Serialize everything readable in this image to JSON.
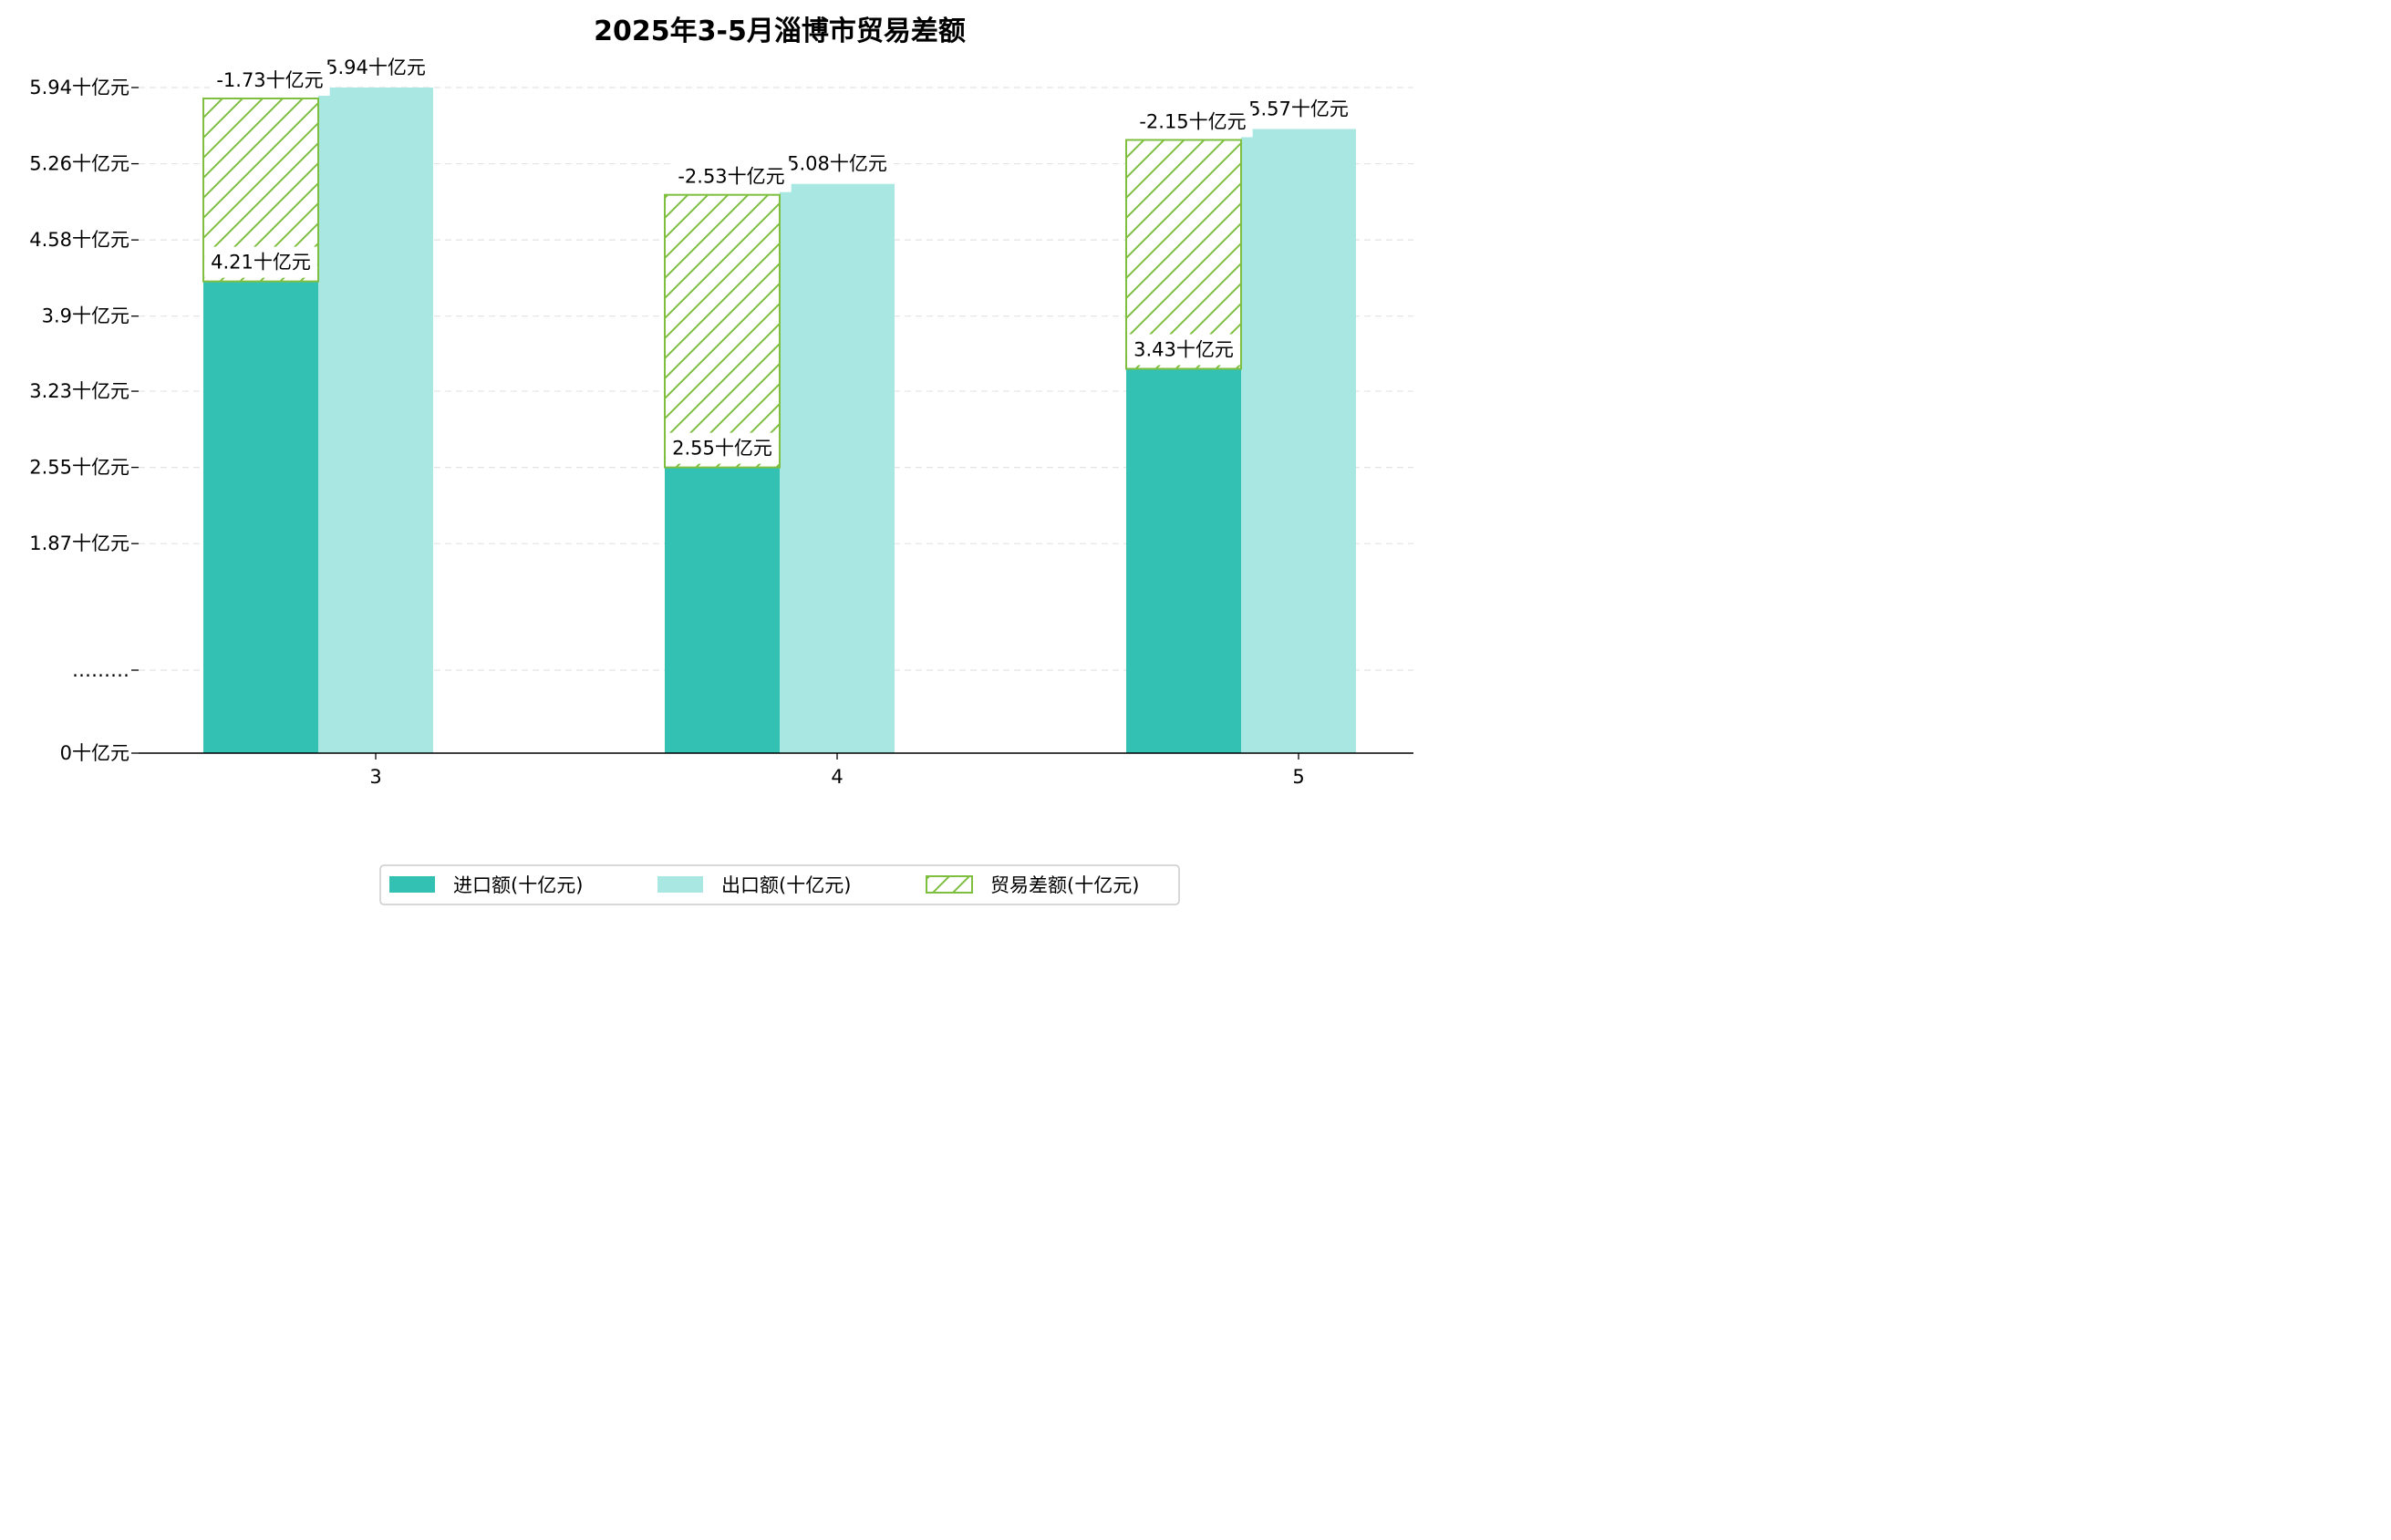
{
  "chart_data": {
    "type": "bar",
    "title": "2025年3-5月淄博市贸易差额",
    "xlabel": "",
    "ylabel": "",
    "categories": [
      "3",
      "4",
      "5"
    ],
    "series": [
      {
        "name": "进口额(十亿元)",
        "values": [
          4.21,
          2.55,
          3.43
        ],
        "labels": [
          "4.21十亿元",
          "2.55十亿元",
          "3.43十亿元"
        ],
        "color": "#32c1b3",
        "pattern": "solid"
      },
      {
        "name": "出口额(十亿元)",
        "values": [
          5.94,
          5.08,
          5.57
        ],
        "labels": [
          "5.94十亿元",
          "5.08十亿元",
          "5.57十亿元"
        ],
        "color": "#a9e8e2",
        "pattern": "solid"
      },
      {
        "name": "贸易差额(十亿元)",
        "values": [
          -1.73,
          -2.53,
          -2.15
        ],
        "labels": [
          "-1.73十亿元",
          "-2.53十亿元",
          "-2.15十亿元"
        ],
        "color": "#7fbf3f",
        "pattern": "hatch"
      }
    ],
    "y_ticks": [
      {
        "value": 0,
        "label": "0十亿元"
      },
      {
        "value": 1.19,
        "label": "………"
      },
      {
        "value": 1.87,
        "label": "1.87十亿元"
      },
      {
        "value": 2.55,
        "label": "2.55十亿元"
      },
      {
        "value": 3.23,
        "label": "3.23十亿元"
      },
      {
        "value": 3.9,
        "label": "3.9十亿元"
      },
      {
        "value": 4.58,
        "label": "4.58十亿元"
      },
      {
        "value": 5.26,
        "label": "5.26十亿元"
      },
      {
        "value": 5.94,
        "label": "5.94十亿元"
      }
    ],
    "ylim": [
      0,
      6.1
    ],
    "y_axis_break": true,
    "grid": "horizontal dashed",
    "legend_position": "bottom-center"
  }
}
